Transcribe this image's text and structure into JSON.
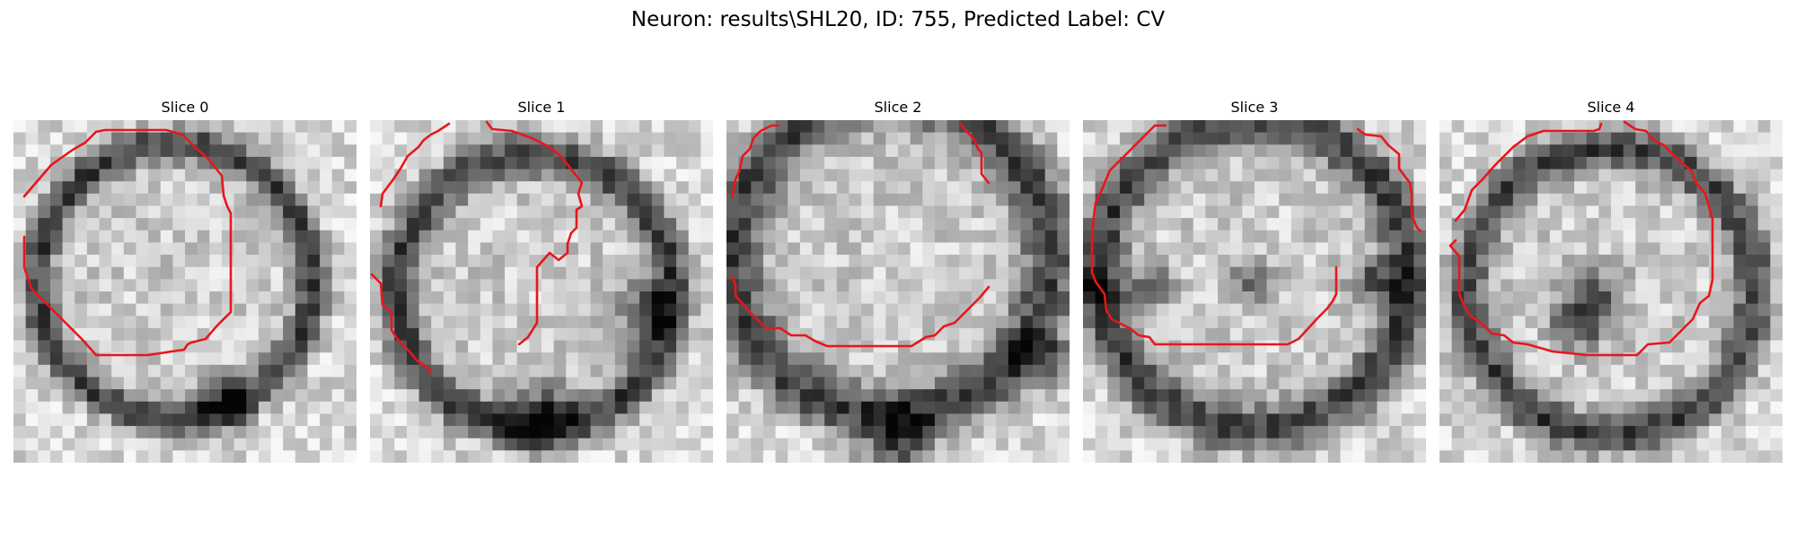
{
  "figure": {
    "title": "Neuron: results\\SHL20, ID: 755, Predicted Label: CV",
    "contour_color": "#e8161b"
  },
  "panels": [
    {
      "label": "Slice 0"
    },
    {
      "label": "Slice 1"
    },
    {
      "label": "Slice 2"
    },
    {
      "label": "Slice 3"
    },
    {
      "label": "Slice 4"
    }
  ]
}
